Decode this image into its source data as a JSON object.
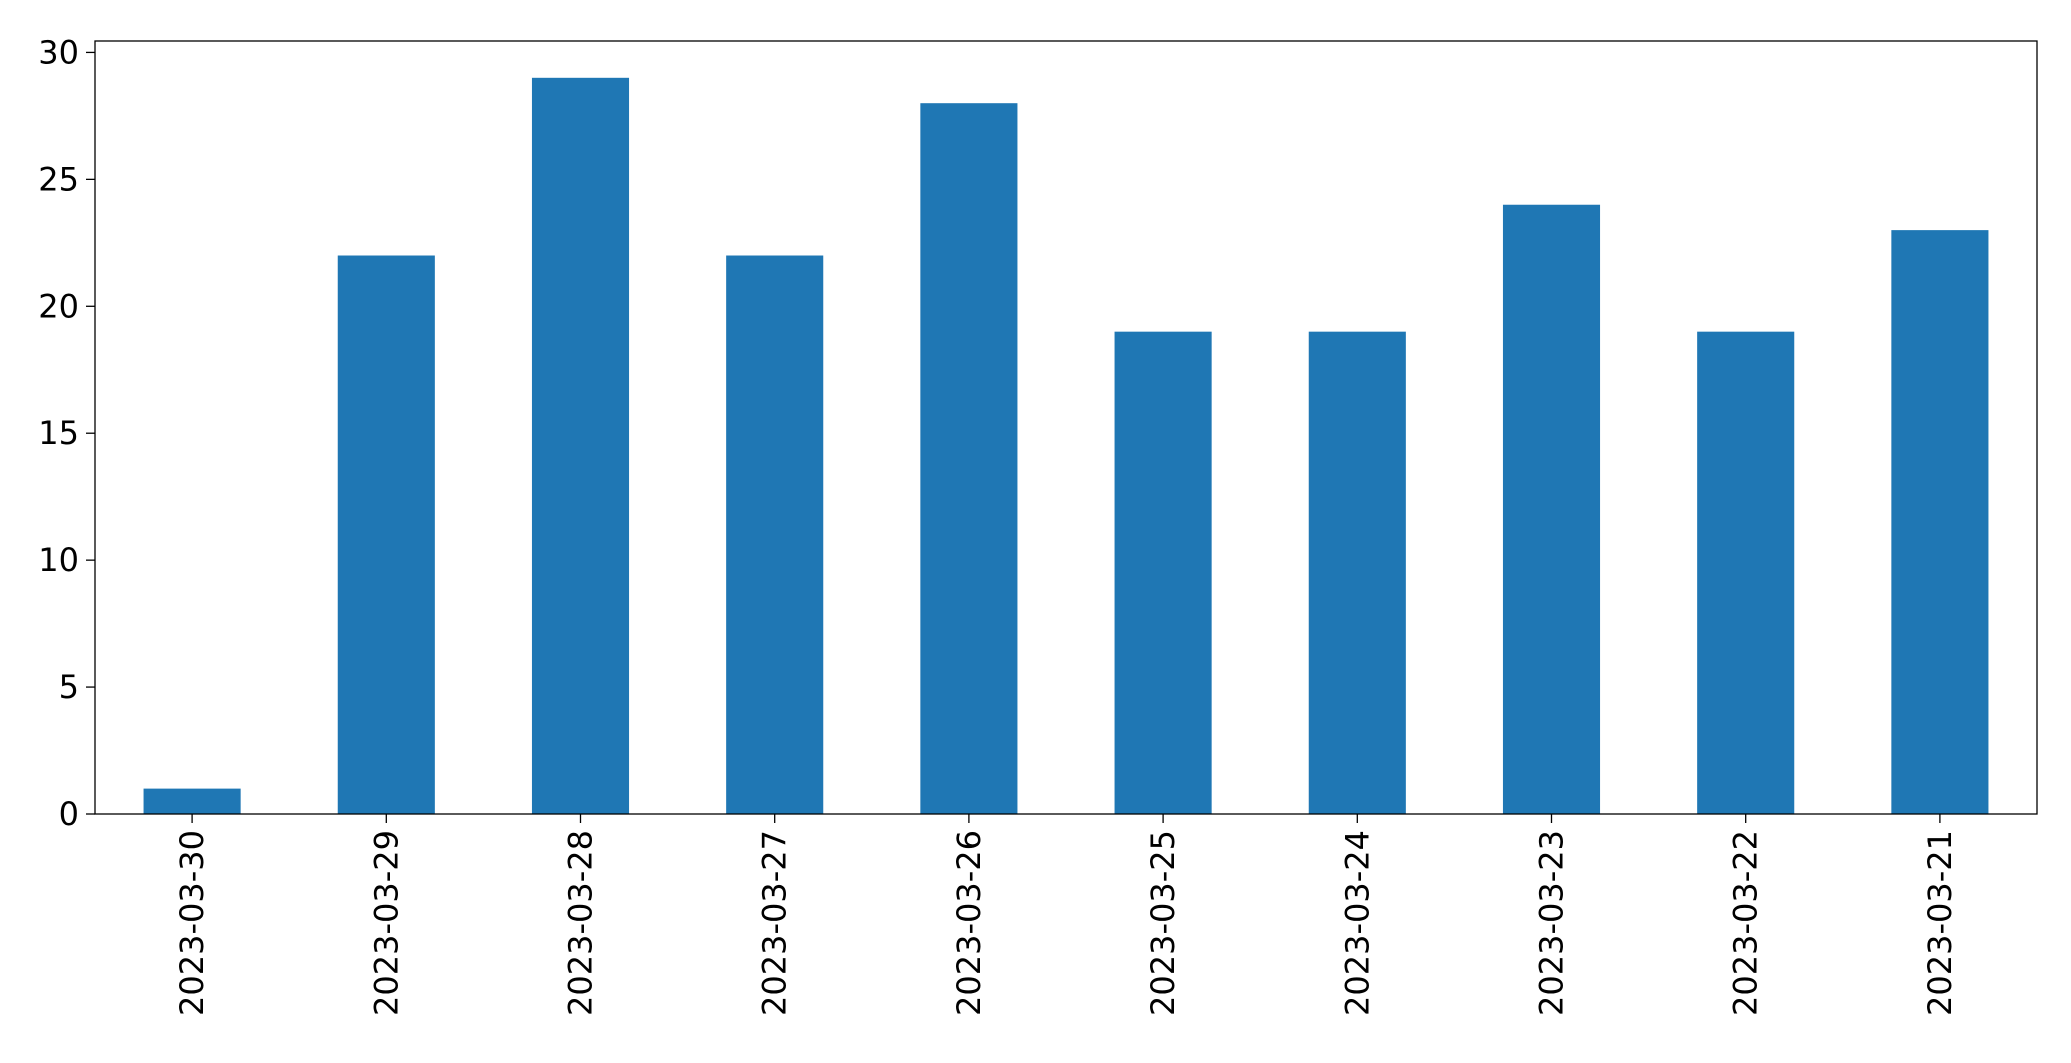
{
  "chart_data": {
    "type": "bar",
    "categories": [
      "2023-03-30",
      "2023-03-29",
      "2023-03-28",
      "2023-03-27",
      "2023-03-26",
      "2023-03-25",
      "2023-03-24",
      "2023-03-23",
      "2023-03-22",
      "2023-03-21"
    ],
    "values": [
      1,
      22,
      29,
      22,
      28,
      19,
      19,
      24,
      19,
      23
    ],
    "color": "#1f77b4",
    "ylim": [
      0,
      30.45
    ],
    "yticks": [
      0,
      5,
      10,
      15,
      20,
      25,
      30
    ],
    "grid": false
  }
}
